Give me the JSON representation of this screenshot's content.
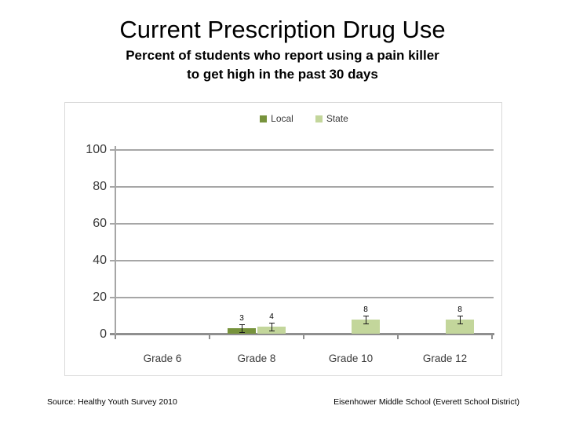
{
  "slide": {
    "title": "Current Prescription Drug Use",
    "subtitle": [
      "Percent of students who report using a pain killer",
      "to get high in the past 30 days"
    ],
    "footer_left": "Source: Healthy Youth Survey 2010",
    "footer_right": "Eisenhower Middle School (Everett School District)"
  },
  "chart_data": {
    "type": "bar",
    "title": "",
    "xlabel": "",
    "ylabel": "",
    "categories": [
      "Grade 6",
      "Grade 8",
      "Grade 10",
      "Grade 12"
    ],
    "series": [
      {
        "name": "Local",
        "color": "#77933c",
        "values": [
          null,
          3,
          null,
          null
        ]
      },
      {
        "name": "State",
        "color": "#c3d69b",
        "values": [
          null,
          4,
          8,
          8
        ]
      }
    ],
    "ylim": [
      0,
      100
    ],
    "yticks": [
      0,
      20,
      40,
      60,
      80,
      100
    ],
    "grid": true,
    "error_bars": true,
    "legend_position": "top",
    "colors": {
      "gridline": "#a6a6a6",
      "axis": "#8f8f8f",
      "frame": "#d9d9d9",
      "axis_text": "#3a3a3a"
    }
  }
}
